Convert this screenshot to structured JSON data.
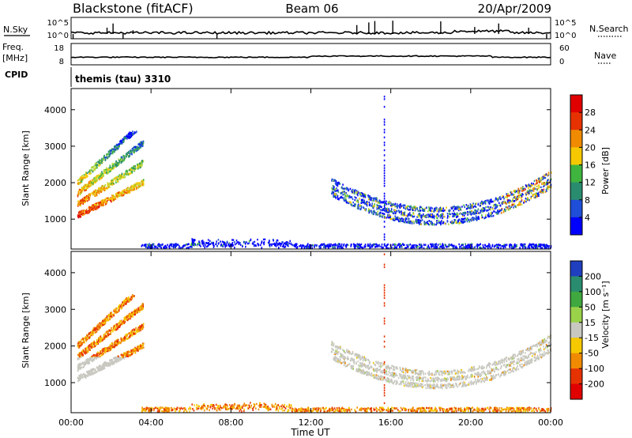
{
  "header": {
    "station": "Blackstone (fitACF)",
    "beam": "Beam 06",
    "date": "20/Apr/2009"
  },
  "status_panels": {
    "nsky_label": "N.Sky",
    "nsky_ticks": [
      "10^5",
      "10^0"
    ],
    "nsearch_label": "N.Search",
    "nsearch_ticks": [
      "10^5",
      "10^0"
    ],
    "freq_label_line1": "Freq.",
    "freq_label_line2": "[MHz]",
    "freq_ticks": [
      "18",
      "8"
    ],
    "nave_label": "Nave",
    "nave_ticks": [
      "60",
      "0"
    ],
    "cpid_label": "CPID",
    "cpid_value": "themis (tau) 3310"
  },
  "x_axis": {
    "label": "Time UT",
    "ticks": [
      "00:00",
      "04:00",
      "08:00",
      "12:00",
      "16:00",
      "20:00",
      "00:00"
    ]
  },
  "chart_data": [
    {
      "type": "heatmap",
      "parameter": "power",
      "ylabel": "Slant Range [km]",
      "yticks": [
        1000,
        2000,
        3000,
        4000
      ],
      "ylim": [
        180,
        4580
      ],
      "xlim_hours": [
        0,
        24
      ],
      "colorbar_label": "Power [dB]",
      "colorbar_ticks": [
        "28",
        "24",
        "20",
        "16",
        "12",
        "8",
        "4"
      ],
      "colors": [
        "#0000ff",
        "#1f4ed8",
        "#2a8c6e",
        "#3fb43f",
        "#b8d83a",
        "#f5c800",
        "#f08a00",
        "#e63200",
        "#e00000"
      ],
      "scatter_regions": [
        {
          "name": "early-arcs",
          "t_start": 0.3,
          "t_end": 3.7
        },
        {
          "name": "u-shape",
          "t_start": 13.0,
          "t_end": 24.0
        },
        {
          "name": "ground-band",
          "t_start": 3.5,
          "t_end": 24.0
        }
      ]
    },
    {
      "type": "heatmap",
      "parameter": "velocity",
      "ylabel": "Slant Range [km]",
      "yticks": [
        1000,
        2000,
        3000,
        4000
      ],
      "ylim": [
        180,
        4580
      ],
      "xlim_hours": [
        0,
        24
      ],
      "colorbar_label": "Velocity [m s^-1]",
      "colorbar_ticks": [
        "200",
        "100",
        "50",
        "15",
        "-15",
        "-50",
        "-100",
        "-200"
      ],
      "colors": [
        "#1f3fbf",
        "#2a8c6e",
        "#3fa83f",
        "#9ad24a",
        "#c8c8c0",
        "#f5c800",
        "#f08a00",
        "#e63200",
        "#e00000"
      ],
      "scatter_regions": [
        {
          "name": "early-arcs",
          "t_start": 0.3,
          "t_end": 3.7
        },
        {
          "name": "u-shape",
          "t_start": 13.0,
          "t_end": 24.0
        },
        {
          "name": "ground-band",
          "t_start": 3.5,
          "t_end": 24.0
        }
      ]
    }
  ]
}
